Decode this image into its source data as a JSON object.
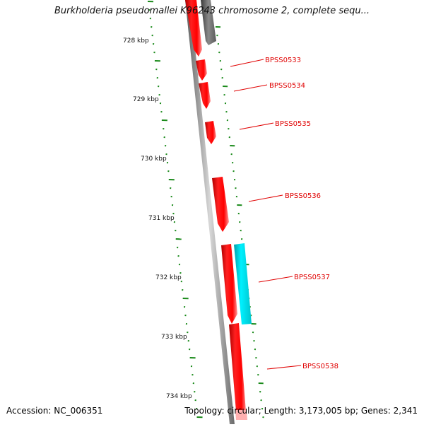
{
  "title": "Burkholderia pseudomallei K96243 chromosome 2, complete sequ...",
  "footer": {
    "accession": "Accession: NC_006351",
    "summary": "Topology: circular; Length: 3,173,005 bp; Genes: 2,341"
  },
  "ruler_ticks": [
    {
      "label": "728 kbp"
    },
    {
      "label": "729 kbp"
    },
    {
      "label": "730 kbp"
    },
    {
      "label": "731 kbp"
    },
    {
      "label": "732 kbp"
    },
    {
      "label": "733 kbp"
    },
    {
      "label": "734 kbp"
    }
  ],
  "gene_labels": [
    {
      "label": "BPSS0533"
    },
    {
      "label": "BPSS0534"
    },
    {
      "label": "BPSS0535"
    },
    {
      "label": "BPSS0536"
    },
    {
      "label": "BPSS0537"
    },
    {
      "label": "BPSS0538"
    }
  ],
  "colors": {
    "forward_gene": "#ff0000",
    "reverse_gene": "#00e6ee",
    "backbone": "#888888",
    "dark_feature": "#666666",
    "ruler": "#1a8a1a",
    "label_text": "#e00000"
  }
}
